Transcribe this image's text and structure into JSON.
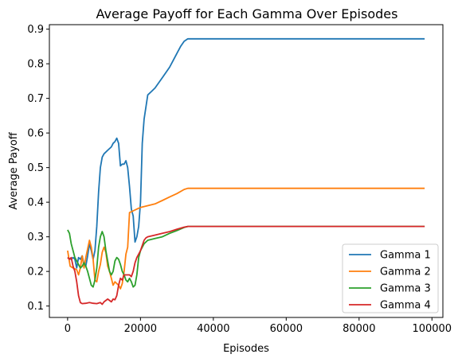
{
  "chart_data": {
    "type": "line",
    "title": "Average Payoff for Each Gamma Over Episodes",
    "xlabel": "Episodes",
    "ylabel": "Average Payoff",
    "xlim": [
      -5000,
      103000
    ],
    "ylim": [
      0.067,
      0.913
    ],
    "xticks": [
      0,
      20000,
      40000,
      60000,
      80000,
      100000
    ],
    "yticks": [
      0.1,
      0.2,
      0.3,
      0.4,
      0.5,
      0.6,
      0.7,
      0.8,
      0.9
    ],
    "legend_position": "lower-right",
    "grid": false,
    "series": [
      {
        "name": "Gamma 1",
        "color": "#1f77b4",
        "points": [
          [
            0,
            0.24
          ],
          [
            1000,
            0.235
          ],
          [
            1500,
            0.24
          ],
          [
            2000,
            0.235
          ],
          [
            2500,
            0.21
          ],
          [
            3000,
            0.24
          ],
          [
            3500,
            0.235
          ],
          [
            4000,
            0.245
          ],
          [
            4500,
            0.22
          ],
          [
            5000,
            0.215
          ],
          [
            5500,
            0.245
          ],
          [
            6000,
            0.28
          ],
          [
            6500,
            0.26
          ],
          [
            7000,
            0.235
          ],
          [
            7500,
            0.26
          ],
          [
            8000,
            0.33
          ],
          [
            8500,
            0.43
          ],
          [
            9000,
            0.5
          ],
          [
            9500,
            0.53
          ],
          [
            10000,
            0.54
          ],
          [
            11000,
            0.55
          ],
          [
            12000,
            0.56
          ],
          [
            12500,
            0.57
          ],
          [
            13000,
            0.575
          ],
          [
            13500,
            0.585
          ],
          [
            14000,
            0.57
          ],
          [
            14500,
            0.505
          ],
          [
            15000,
            0.51
          ],
          [
            15500,
            0.51
          ],
          [
            16000,
            0.52
          ],
          [
            16500,
            0.5
          ],
          [
            17000,
            0.445
          ],
          [
            17500,
            0.38
          ],
          [
            18000,
            0.36
          ],
          [
            18500,
            0.285
          ],
          [
            19000,
            0.3
          ],
          [
            19500,
            0.33
          ],
          [
            20000,
            0.4
          ],
          [
            20500,
            0.57
          ],
          [
            21000,
            0.64
          ],
          [
            21500,
            0.675
          ],
          [
            22000,
            0.71
          ],
          [
            23000,
            0.72
          ],
          [
            24000,
            0.73
          ],
          [
            25000,
            0.745
          ],
          [
            26000,
            0.76
          ],
          [
            27000,
            0.775
          ],
          [
            28000,
            0.79
          ],
          [
            29000,
            0.81
          ],
          [
            30000,
            0.83
          ],
          [
            31000,
            0.85
          ],
          [
            32000,
            0.865
          ],
          [
            33000,
            0.872
          ],
          [
            60000,
            0.872
          ],
          [
            98000,
            0.872
          ]
        ]
      },
      {
        "name": "Gamma 2",
        "color": "#ff7f0e",
        "points": [
          [
            0,
            0.26
          ],
          [
            700,
            0.215
          ],
          [
            1500,
            0.21
          ],
          [
            2500,
            0.205
          ],
          [
            3000,
            0.19
          ],
          [
            3500,
            0.21
          ],
          [
            4000,
            0.245
          ],
          [
            4500,
            0.21
          ],
          [
            5000,
            0.24
          ],
          [
            5500,
            0.265
          ],
          [
            6000,
            0.29
          ],
          [
            6500,
            0.27
          ],
          [
            7000,
            0.235
          ],
          [
            7500,
            0.175
          ],
          [
            8000,
            0.17
          ],
          [
            8500,
            0.2
          ],
          [
            9000,
            0.22
          ],
          [
            9500,
            0.255
          ],
          [
            10000,
            0.27
          ],
          [
            10500,
            0.255
          ],
          [
            11000,
            0.215
          ],
          [
            11500,
            0.2
          ],
          [
            12000,
            0.18
          ],
          [
            12500,
            0.16
          ],
          [
            13000,
            0.17
          ],
          [
            13500,
            0.165
          ],
          [
            14000,
            0.16
          ],
          [
            14500,
            0.15
          ],
          [
            15000,
            0.165
          ],
          [
            15500,
            0.2
          ],
          [
            16000,
            0.25
          ],
          [
            16500,
            0.27
          ],
          [
            17000,
            0.37
          ],
          [
            18000,
            0.375
          ],
          [
            19000,
            0.38
          ],
          [
            20000,
            0.385
          ],
          [
            22000,
            0.39
          ],
          [
            24000,
            0.395
          ],
          [
            26000,
            0.405
          ],
          [
            28000,
            0.415
          ],
          [
            30000,
            0.425
          ],
          [
            32000,
            0.437
          ],
          [
            33000,
            0.44
          ],
          [
            60000,
            0.44
          ],
          [
            98000,
            0.44
          ]
        ]
      },
      {
        "name": "Gamma 3",
        "color": "#2ca02c",
        "points": [
          [
            0,
            0.32
          ],
          [
            500,
            0.31
          ],
          [
            1000,
            0.28
          ],
          [
            1500,
            0.26
          ],
          [
            2000,
            0.24
          ],
          [
            2500,
            0.23
          ],
          [
            3000,
            0.22
          ],
          [
            3500,
            0.21
          ],
          [
            4000,
            0.215
          ],
          [
            4500,
            0.225
          ],
          [
            5000,
            0.215
          ],
          [
            5500,
            0.2
          ],
          [
            6000,
            0.18
          ],
          [
            6500,
            0.16
          ],
          [
            7000,
            0.155
          ],
          [
            7500,
            0.175
          ],
          [
            8000,
            0.21
          ],
          [
            8500,
            0.27
          ],
          [
            9000,
            0.3
          ],
          [
            9500,
            0.315
          ],
          [
            10000,
            0.3
          ],
          [
            10500,
            0.26
          ],
          [
            11000,
            0.23
          ],
          [
            11500,
            0.2
          ],
          [
            12000,
            0.19
          ],
          [
            12500,
            0.2
          ],
          [
            13000,
            0.23
          ],
          [
            13500,
            0.24
          ],
          [
            14000,
            0.235
          ],
          [
            14500,
            0.22
          ],
          [
            15000,
            0.2
          ],
          [
            15500,
            0.19
          ],
          [
            16000,
            0.175
          ],
          [
            16500,
            0.17
          ],
          [
            17000,
            0.18
          ],
          [
            17500,
            0.17
          ],
          [
            18000,
            0.155
          ],
          [
            18500,
            0.16
          ],
          [
            19000,
            0.19
          ],
          [
            19500,
            0.24
          ],
          [
            20000,
            0.26
          ],
          [
            21000,
            0.28
          ],
          [
            22000,
            0.29
          ],
          [
            24000,
            0.295
          ],
          [
            26000,
            0.3
          ],
          [
            28000,
            0.31
          ],
          [
            30000,
            0.318
          ],
          [
            32000,
            0.327
          ],
          [
            33000,
            0.33
          ],
          [
            60000,
            0.33
          ],
          [
            98000,
            0.33
          ]
        ]
      },
      {
        "name": "Gamma 4",
        "color": "#d62728",
        "points": [
          [
            0,
            0.24
          ],
          [
            500,
            0.235
          ],
          [
            1000,
            0.24
          ],
          [
            1500,
            0.215
          ],
          [
            2000,
            0.2
          ],
          [
            2500,
            0.17
          ],
          [
            3000,
            0.13
          ],
          [
            3500,
            0.11
          ],
          [
            4000,
            0.107
          ],
          [
            5000,
            0.108
          ],
          [
            6000,
            0.11
          ],
          [
            7000,
            0.108
          ],
          [
            8000,
            0.107
          ],
          [
            9000,
            0.11
          ],
          [
            9500,
            0.105
          ],
          [
            10000,
            0.112
          ],
          [
            11000,
            0.12
          ],
          [
            12000,
            0.112
          ],
          [
            12500,
            0.12
          ],
          [
            13000,
            0.118
          ],
          [
            13500,
            0.13
          ],
          [
            14000,
            0.16
          ],
          [
            14500,
            0.18
          ],
          [
            15000,
            0.175
          ],
          [
            15500,
            0.19
          ],
          [
            16000,
            0.19
          ],
          [
            17000,
            0.19
          ],
          [
            17500,
            0.185
          ],
          [
            18000,
            0.2
          ],
          [
            18500,
            0.225
          ],
          [
            19000,
            0.24
          ],
          [
            19500,
            0.25
          ],
          [
            20000,
            0.26
          ],
          [
            20500,
            0.275
          ],
          [
            21000,
            0.29
          ],
          [
            21500,
            0.297
          ],
          [
            22000,
            0.3
          ],
          [
            24000,
            0.305
          ],
          [
            26000,
            0.31
          ],
          [
            28000,
            0.315
          ],
          [
            30000,
            0.322
          ],
          [
            32000,
            0.328
          ],
          [
            33000,
            0.33
          ],
          [
            60000,
            0.33
          ],
          [
            98000,
            0.33
          ]
        ]
      }
    ]
  }
}
